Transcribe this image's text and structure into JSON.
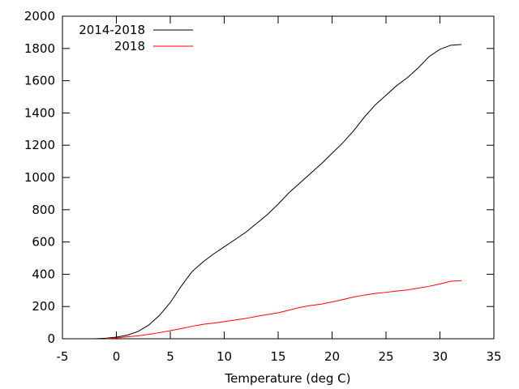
{
  "chart_data": {
    "type": "line",
    "title": "",
    "xlabel": "Temperature (deg C)",
    "ylabel": "",
    "xlim": [
      -5,
      35
    ],
    "ylim": [
      0,
      2000
    ],
    "xticks": [
      "-5",
      "0",
      "5",
      "10",
      "15",
      "20",
      "25",
      "30",
      "35"
    ],
    "yticks": [
      "0",
      "200",
      "400",
      "600",
      "800",
      "1000",
      "1200",
      "1400",
      "1600",
      "1800",
      "2000"
    ],
    "grid": false,
    "legend_position": "top-left",
    "series": [
      {
        "name": "2014-2018",
        "color": "#000000",
        "x": [
          -2,
          -1,
          0,
          1,
          2,
          3,
          4,
          5,
          6,
          7,
          8,
          9,
          10,
          11,
          12,
          13,
          14,
          15,
          16,
          17,
          18,
          19,
          20,
          21,
          22,
          23,
          24,
          25,
          26,
          27,
          28,
          29,
          30,
          31,
          32
        ],
        "y": [
          0,
          3,
          10,
          22,
          45,
          85,
          145,
          225,
          325,
          415,
          475,
          525,
          570,
          615,
          660,
          715,
          770,
          835,
          905,
          965,
          1025,
          1085,
          1150,
          1215,
          1290,
          1375,
          1450,
          1510,
          1570,
          1620,
          1680,
          1750,
          1795,
          1820,
          1825
        ]
      },
      {
        "name": "2018",
        "color": "#ff0000",
        "x": [
          -1,
          0,
          1,
          2,
          3,
          4,
          5,
          6,
          7,
          8,
          9,
          10,
          11,
          12,
          13,
          14,
          15,
          16,
          17,
          18,
          19,
          20,
          21,
          22,
          23,
          24,
          25,
          26,
          27,
          28,
          29,
          30,
          31,
          32
        ],
        "y": [
          0,
          5,
          12,
          18,
          27,
          38,
          50,
          63,
          77,
          89,
          97,
          106,
          116,
          126,
          139,
          150,
          161,
          177,
          194,
          206,
          215,
          228,
          243,
          259,
          271,
          281,
          288,
          296,
          303,
          314,
          325,
          340,
          357,
          360
        ]
      }
    ]
  }
}
